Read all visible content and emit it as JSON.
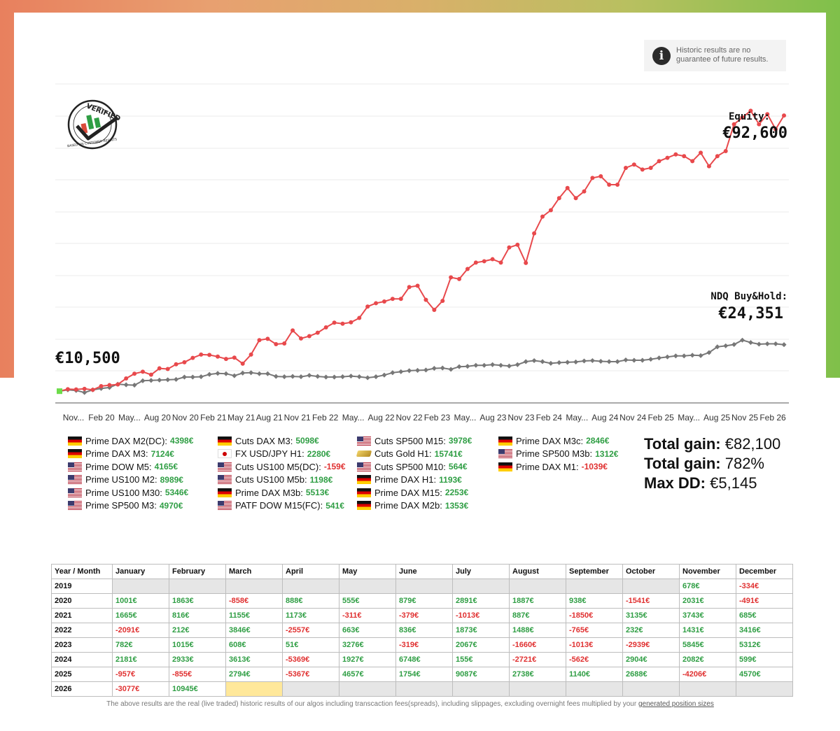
{
  "notice": {
    "text": "Historic results are no guarantee of future results.",
    "icon": "info-icon"
  },
  "badge": {
    "top_text": "VERIFIED",
    "bottom_text": "BASED ON CUSTOMER RESULTS"
  },
  "chart_data": {
    "type": "line",
    "x_tick_labels": [
      "Nov...",
      "Feb 20",
      "May...",
      "Aug 20",
      "Nov 20",
      "Feb 21",
      "May 21",
      "Aug 21",
      "Nov 21",
      "Feb 22",
      "May...",
      "Aug 22",
      "Nov 22",
      "Feb 23",
      "May...",
      "Aug 23",
      "Nov 23",
      "Feb 24",
      "May...",
      "Aug 24",
      "Nov 24",
      "Feb 25",
      "May...",
      "Aug 25",
      "Nov 25",
      "Feb 26"
    ],
    "ylim": [
      7000,
      102000
    ],
    "grid": true,
    "series": [
      {
        "name": "Equity",
        "color": "#e8494c",
        "values": [
          10500,
          11100,
          11000,
          11200,
          10900,
          12000,
          12300,
          12500,
          14300,
          15700,
          16300,
          15400,
          17300,
          17100,
          18500,
          19100,
          20400,
          21400,
          21300,
          20800,
          20100,
          20500,
          18700,
          21400,
          25700,
          26100,
          24500,
          24700,
          28600,
          26200,
          26900,
          27900,
          29500,
          30900,
          30600,
          31000,
          32300,
          35700,
          36700,
          37200,
          38000,
          38000,
          41500,
          41900,
          37700,
          34700,
          37400,
          44400,
          43900,
          46900,
          48800,
          49200,
          49800,
          48800,
          53300,
          54100,
          48700,
          57500,
          62500,
          64400,
          68000,
          71000,
          68000,
          70000,
          74000,
          74500,
          72000,
          72000,
          77000,
          78000,
          76500,
          77000,
          79000,
          80000,
          81000,
          80500,
          79000,
          81500,
          77500,
          80500,
          82000,
          90000,
          92000,
          94000,
          90000,
          93000,
          88500,
          92600
        ],
        "start_label": "€10,500",
        "end_label": "Equity:",
        "end_value": "€92,600"
      },
      {
        "name": "NDQ Buy&Hold",
        "color": "#777777",
        "values": [
          10500,
          10900,
          10700,
          10100,
          10900,
          11300,
          11600,
          12600,
          12400,
          12300,
          13600,
          13700,
          13800,
          13900,
          14000,
          14700,
          14700,
          14800,
          15500,
          15800,
          15700,
          15100,
          15900,
          16000,
          15700,
          15700,
          14900,
          14800,
          14900,
          14800,
          15200,
          14900,
          14700,
          14700,
          14800,
          15000,
          14800,
          14500,
          14800,
          15300,
          16000,
          16300,
          16600,
          16700,
          16800,
          17300,
          17400,
          17000,
          17800,
          17900,
          18200,
          18200,
          18400,
          18200,
          18000,
          18400,
          19300,
          19600,
          19300,
          18800,
          19000,
          19100,
          19200,
          19500,
          19600,
          19400,
          19300,
          19300,
          19800,
          19700,
          19700,
          20000,
          20400,
          20700,
          21000,
          21000,
          21200,
          21100,
          22000,
          23700,
          24000,
          24400,
          25700,
          25000,
          24500,
          24600,
          24600,
          24351
        ],
        "end_label": "NDQ Buy&Hold:",
        "end_value": "€24,351"
      }
    ]
  },
  "legend": {
    "columns": [
      [
        {
          "flag": "de",
          "name": "Prime DAX M2(DC):",
          "value": "4398€",
          "sign": "pos"
        },
        {
          "flag": "de",
          "name": "Prime DAX M3:",
          "value": "7124€",
          "sign": "pos"
        },
        {
          "flag": "us",
          "name": "Prime DOW M5:",
          "value": "4165€",
          "sign": "pos"
        },
        {
          "flag": "us",
          "name": "Prime US100 M2:",
          "value": "8989€",
          "sign": "pos"
        },
        {
          "flag": "us",
          "name": "Prime US100 M30:",
          "value": "5346€",
          "sign": "pos"
        },
        {
          "flag": "us",
          "name": "Prime SP500 M3:",
          "value": "4970€",
          "sign": "pos"
        }
      ],
      [
        {
          "flag": "de",
          "name": "Cuts DAX M3:",
          "value": "5098€",
          "sign": "pos"
        },
        {
          "flag": "jp",
          "name": "FX USD/JPY H1:",
          "value": "2280€",
          "sign": "pos"
        },
        {
          "flag": "us",
          "name": "Cuts US100 M5(DC):",
          "value": "-159€",
          "sign": "neg"
        },
        {
          "flag": "us",
          "name": "Cuts US100 M5b:",
          "value": "1198€",
          "sign": "pos"
        },
        {
          "flag": "de",
          "name": "Prime DAX M3b:",
          "value": "5513€",
          "sign": "pos"
        },
        {
          "flag": "us",
          "name": "PATF DOW M15(FC):",
          "value": "541€",
          "sign": "pos"
        }
      ],
      [
        {
          "flag": "us",
          "name": "Cuts SP500 M15:",
          "value": "3978€",
          "sign": "pos"
        },
        {
          "flag": "gold",
          "name": "Cuts Gold H1:",
          "value": "15741€",
          "sign": "pos"
        },
        {
          "flag": "us",
          "name": "Cuts SP500 M10:",
          "value": "564€",
          "sign": "pos"
        },
        {
          "flag": "de",
          "name": "Prime DAX H1:",
          "value": "1193€",
          "sign": "pos"
        },
        {
          "flag": "de",
          "name": "Prime DAX M15:",
          "value": "2253€",
          "sign": "pos"
        },
        {
          "flag": "de",
          "name": "Prime DAX M2b:",
          "value": "1353€",
          "sign": "pos"
        }
      ],
      [
        {
          "flag": "de",
          "name": "Prime DAX M3c:",
          "value": "2846€",
          "sign": "pos"
        },
        {
          "flag": "us",
          "name": "Prime SP500 M3b:",
          "value": "1312€",
          "sign": "pos"
        },
        {
          "flag": "de",
          "name": "Prime DAX M1:",
          "value": "-1039€",
          "sign": "neg"
        }
      ]
    ]
  },
  "stats": [
    {
      "label": "Total gain:",
      "value": "€82,100"
    },
    {
      "label": "Total gain:",
      "value": "782%"
    },
    {
      "label": "Max DD:",
      "value": "€5,145"
    }
  ],
  "monthly_table": {
    "headers": [
      "Year / Month",
      "January",
      "February",
      "March",
      "April",
      "May",
      "June",
      "July",
      "August",
      "September",
      "October",
      "November",
      "December"
    ],
    "rows": [
      {
        "year": "2019",
        "cells": [
          "",
          "",
          "",
          "",
          "",
          "",
          "",
          "",
          "",
          "",
          "678€",
          "-334€"
        ]
      },
      {
        "year": "2020",
        "cells": [
          "1001€",
          "1863€",
          "-858€",
          "888€",
          "555€",
          "879€",
          "2891€",
          "1887€",
          "938€",
          "-1541€",
          "2031€",
          "-491€"
        ]
      },
      {
        "year": "2021",
        "cells": [
          "1665€",
          "816€",
          "1155€",
          "1173€",
          "-311€",
          "-379€",
          "-1013€",
          "887€",
          "-1850€",
          "3135€",
          "3743€",
          "685€"
        ]
      },
      {
        "year": "2022",
        "cells": [
          "-2091€",
          "212€",
          "3846€",
          "-2557€",
          "663€",
          "836€",
          "1873€",
          "1488€",
          "-765€",
          "232€",
          "1431€",
          "3416€"
        ]
      },
      {
        "year": "2023",
        "cells": [
          "782€",
          "1015€",
          "608€",
          "51€",
          "3276€",
          "-319€",
          "2067€",
          "-1660€",
          "-1013€",
          "-2939€",
          "5845€",
          "5312€"
        ]
      },
      {
        "year": "2024",
        "cells": [
          "2181€",
          "2933€",
          "3613€",
          "-5369€",
          "1927€",
          "6748€",
          "155€",
          "-2721€",
          "-562€",
          "2904€",
          "2082€",
          "599€"
        ]
      },
      {
        "year": "2025",
        "cells": [
          "-957€",
          "-855€",
          "2794€",
          "-5367€",
          "4657€",
          "1754€",
          "9087€",
          "2738€",
          "1140€",
          "2688€",
          "-4206€",
          "4570€"
        ]
      },
      {
        "year": "2026",
        "cells": [
          "-3077€",
          "10945€",
          "",
          "",
          "",
          "",
          "",
          "",
          "",
          "",
          "",
          ""
        ]
      }
    ]
  },
  "footnote": {
    "text": "The above results are the real (live traded) historic results of our algos including transcaction fees(spreads), including slippages, excluding overnight fees multiplied by your ",
    "link": "generated position sizes"
  }
}
